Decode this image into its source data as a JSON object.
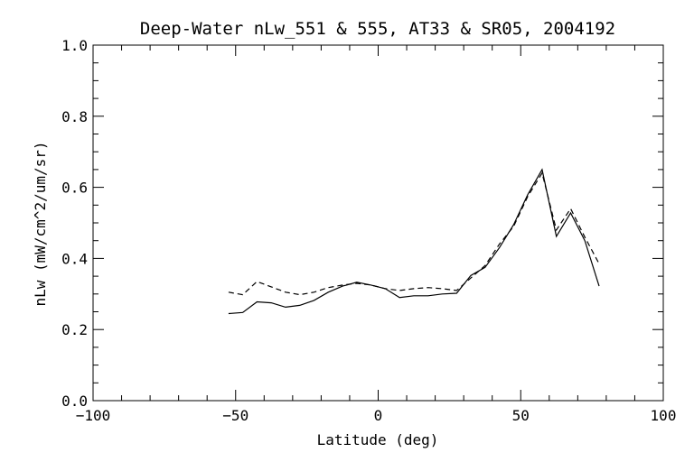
{
  "chart_data": {
    "type": "line",
    "title": "Deep-Water nLw_551 & 555, AT33 & SR05, 2004192",
    "xlabel": "Latitude (deg)",
    "ylabel": "nLw (mW/cm^2/um/sr)",
    "xlim": [
      -100,
      100
    ],
    "ylim": [
      0.0,
      1.0
    ],
    "xticks": [
      -100,
      -50,
      0,
      50,
      100
    ],
    "xtick_labels": [
      "−100",
      "−50",
      "0",
      "50",
      "100"
    ],
    "yticks": [
      0.0,
      0.2,
      0.4,
      0.6,
      0.8,
      1.0
    ],
    "ytick_labels": [
      "0.0",
      "0.2",
      "0.4",
      "0.6",
      "0.8",
      "1.0"
    ],
    "grid": false,
    "series": [
      {
        "style": "solid",
        "color": "#000000",
        "x": [
          -52.5,
          -47.5,
          -42.5,
          -37.5,
          -32.5,
          -27.5,
          -22.5,
          -17.5,
          -12.5,
          -7.5,
          -2.5,
          2.5,
          7.5,
          12.5,
          17.5,
          22.5,
          27.5,
          32.5,
          37.5,
          42.5,
          47.5,
          52.5,
          57.5,
          62.5,
          67.5,
          72.5,
          77.5
        ],
        "y": [
          0.245,
          0.248,
          0.278,
          0.275,
          0.263,
          0.268,
          0.282,
          0.305,
          0.322,
          0.333,
          0.325,
          0.315,
          0.29,
          0.295,
          0.295,
          0.3,
          0.302,
          0.352,
          0.375,
          0.43,
          0.495,
          0.58,
          0.65,
          0.462,
          0.528,
          0.45,
          0.322
        ]
      },
      {
        "style": "dashed",
        "color": "#000000",
        "x": [
          -52.5,
          -47.5,
          -42.5,
          -37.5,
          -32.5,
          -27.5,
          -22.5,
          -17.5,
          -12.5,
          -7.5,
          -2.5,
          2.5,
          7.5,
          12.5,
          17.5,
          22.5,
          27.5,
          32.5,
          37.5,
          42.5,
          47.5,
          52.5,
          57.5,
          62.5,
          67.5,
          72.5,
          77.5
        ],
        "y": [
          0.305,
          0.298,
          0.335,
          0.32,
          0.305,
          0.298,
          0.305,
          0.318,
          0.325,
          0.33,
          0.325,
          0.315,
          0.31,
          0.315,
          0.318,
          0.315,
          0.31,
          0.345,
          0.38,
          0.44,
          0.49,
          0.575,
          0.64,
          0.48,
          0.54,
          0.46,
          0.385
        ]
      }
    ]
  }
}
